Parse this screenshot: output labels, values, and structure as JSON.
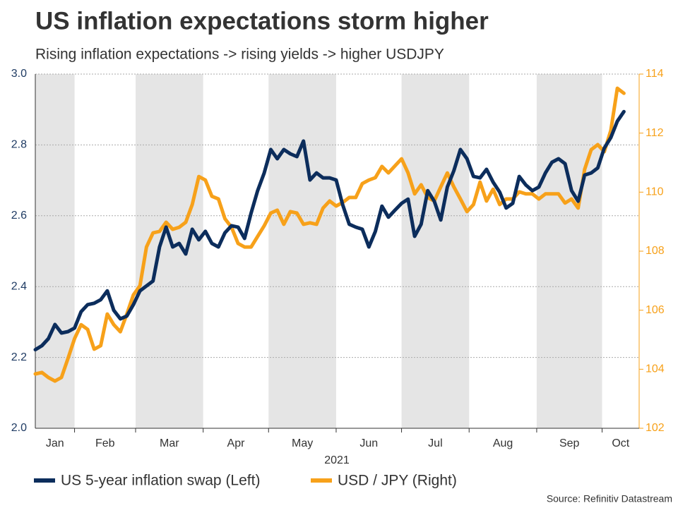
{
  "chart_data": {
    "type": "line",
    "title": "US inflation expectations storm higher",
    "subtitle": "Rising inflation expectations -> rising yields -> higher USDJPY",
    "x_label": "2021",
    "source": "Source: Refinitiv Datastream",
    "xlim": [
      13,
      290
    ],
    "xticks": [
      {
        "value": 0,
        "label": "Jan"
      },
      {
        "value": 31,
        "label": "Feb"
      },
      {
        "value": 59,
        "label": "Mar"
      },
      {
        "value": 90,
        "label": "Apr"
      },
      {
        "value": 120,
        "label": "May"
      },
      {
        "value": 151,
        "label": "Jun"
      },
      {
        "value": 181,
        "label": "Jul"
      },
      {
        "value": 212,
        "label": "Aug"
      },
      {
        "value": 243,
        "label": "Sep"
      },
      {
        "value": 273,
        "label": "Oct"
      }
    ],
    "shade_alternate_months": true,
    "ylim": [
      2.0,
      3.0
    ],
    "yticks": [
      {
        "value": 2.0,
        "label": "2.0"
      },
      2.2,
      2.4,
      2.6,
      2.8,
      {
        "value": 3.0,
        "label": "3.0"
      }
    ],
    "y2lim": [
      102,
      114
    ],
    "y2ticks": [
      102,
      104,
      106,
      108,
      110,
      112,
      114
    ],
    "grid": true,
    "legend": "bottom",
    "x": [
      13,
      16,
      19,
      22,
      25,
      28,
      31,
      34,
      37,
      40,
      43,
      46,
      49,
      52,
      55,
      58,
      61,
      64,
      67,
      70,
      73,
      76,
      79,
      82,
      85,
      88,
      91,
      94,
      97,
      100,
      103,
      106,
      109,
      112,
      115,
      118,
      121,
      124,
      127,
      130,
      133,
      136,
      139,
      142,
      145,
      148,
      151,
      154,
      157,
      160,
      163,
      166,
      169,
      172,
      175,
      178,
      181,
      184,
      187,
      190,
      193,
      196,
      199,
      202,
      205,
      208,
      211,
      214,
      217,
      220,
      223,
      226,
      229,
      232,
      235,
      238,
      241,
      244,
      247,
      250,
      253,
      256,
      259,
      262,
      265,
      268,
      271,
      274,
      277,
      280,
      283
    ],
    "series": [
      {
        "name": "US 5-year inflation swap (Left)",
        "color": "#0c2d5c",
        "axis": "y",
        "values": [
          2.222,
          2.233,
          2.253,
          2.293,
          2.269,
          2.273,
          2.283,
          2.329,
          2.349,
          2.353,
          2.363,
          2.388,
          2.333,
          2.309,
          2.317,
          2.349,
          2.388,
          2.402,
          2.416,
          2.512,
          2.568,
          2.512,
          2.522,
          2.492,
          2.562,
          2.532,
          2.556,
          2.522,
          2.512,
          2.552,
          2.572,
          2.568,
          2.536,
          2.608,
          2.671,
          2.721,
          2.787,
          2.761,
          2.787,
          2.775,
          2.767,
          2.811,
          2.701,
          2.721,
          2.707,
          2.707,
          2.701,
          2.631,
          2.576,
          2.568,
          2.562,
          2.512,
          2.556,
          2.627,
          2.596,
          2.616,
          2.635,
          2.647,
          2.542,
          2.576,
          2.671,
          2.641,
          2.588,
          2.681,
          2.727,
          2.787,
          2.761,
          2.711,
          2.707,
          2.731,
          2.695,
          2.667,
          2.622,
          2.635,
          2.711,
          2.687,
          2.671,
          2.681,
          2.721,
          2.751,
          2.761,
          2.747,
          2.671,
          2.641,
          2.715,
          2.721,
          2.735,
          2.791,
          2.821,
          2.867,
          2.894
        ]
      },
      {
        "name": "USD / JPY (Right)",
        "color": "#f7a11a",
        "axis": "y2",
        "values": [
          103.84,
          103.89,
          103.72,
          103.6,
          103.72,
          104.37,
          105.04,
          105.51,
          105.35,
          104.68,
          104.8,
          105.87,
          105.51,
          105.27,
          105.87,
          106.52,
          106.83,
          108.14,
          108.62,
          108.67,
          108.98,
          108.74,
          108.81,
          108.98,
          109.58,
          110.53,
          110.41,
          109.86,
          109.77,
          109.1,
          108.81,
          108.26,
          108.14,
          108.14,
          108.5,
          108.86,
          109.29,
          109.39,
          108.91,
          109.34,
          109.29,
          108.91,
          108.96,
          108.91,
          109.46,
          109.7,
          109.53,
          109.65,
          109.82,
          109.82,
          110.29,
          110.41,
          110.49,
          110.87,
          110.65,
          110.89,
          111.13,
          110.65,
          109.94,
          110.25,
          109.82,
          109.7,
          110.18,
          110.65,
          110.18,
          109.77,
          109.34,
          109.58,
          110.34,
          109.7,
          110.1,
          109.58,
          109.77,
          109.77,
          110.01,
          109.94,
          109.94,
          109.77,
          109.94,
          109.94,
          109.94,
          109.63,
          109.77,
          109.46,
          110.77,
          111.44,
          111.61,
          111.37,
          112.09,
          113.52,
          113.35
        ]
      }
    ]
  }
}
